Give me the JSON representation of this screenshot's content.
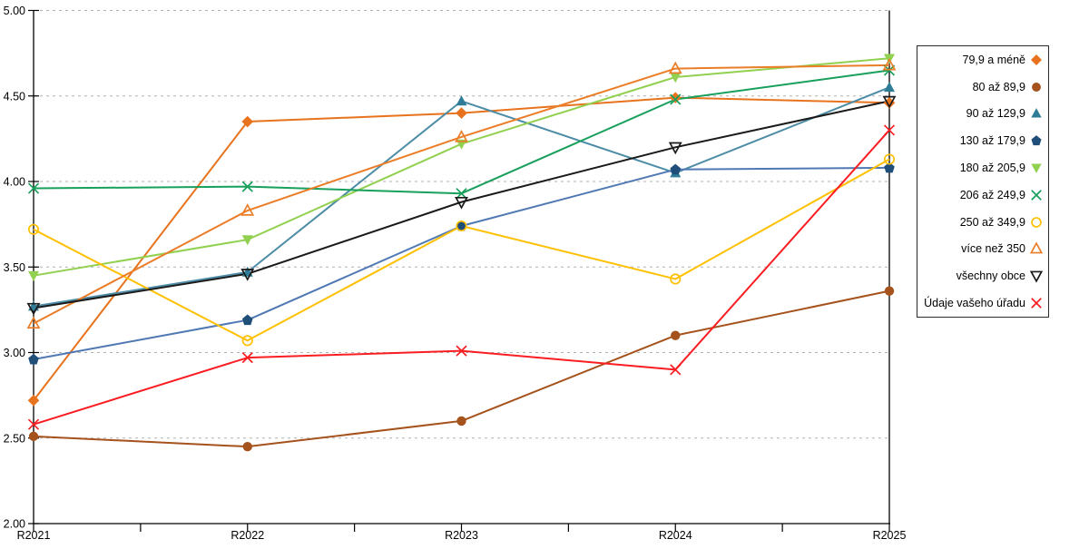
{
  "chart_data": {
    "type": "line",
    "title": "",
    "categories": [
      "R2021",
      "R2022",
      "R2023",
      "R2024",
      "R2025"
    ],
    "xlabel": "",
    "ylabel": "",
    "ylim": [
      2.0,
      5.0
    ],
    "ytick_interval": 0.5,
    "ytick_labels": [
      "5.00",
      "4.50",
      "4.00",
      "3.50",
      "3.00",
      "2.50",
      "2.00"
    ],
    "grid": {
      "horizontal": true,
      "style": "dashed",
      "color": "#B0B0B0"
    },
    "legend_position": "right-box",
    "series": [
      {
        "name": "79,9 a méně",
        "marker": "diamond",
        "fill": "filled",
        "color": "#E8731E",
        "marker_color": "#E8731E",
        "values": [
          2.72,
          4.35,
          4.4,
          4.49,
          4.46
        ]
      },
      {
        "name": "80 až 89,9",
        "marker": "circle",
        "fill": "filled",
        "color": "#A5521C",
        "marker_color": "#A5521C",
        "values": [
          2.51,
          2.45,
          2.6,
          3.1,
          3.36
        ]
      },
      {
        "name": "90 až 129,9",
        "marker": "triangle-up",
        "fill": "filled",
        "color": "#4C8CA6",
        "marker_color": "#2E7C95",
        "values": [
          3.27,
          3.47,
          4.47,
          4.05,
          4.55
        ]
      },
      {
        "name": "130 až 179,9",
        "marker": "pentagon",
        "fill": "filled",
        "color": "#5079B4",
        "marker_color": "#1F4E79",
        "values": [
          2.96,
          3.19,
          3.74,
          4.07,
          4.08
        ]
      },
      {
        "name": "180 až 205,9",
        "marker": "triangle-down",
        "fill": "filled",
        "color": "#92D050",
        "marker_color": "#92D050",
        "values": [
          3.45,
          3.66,
          4.22,
          4.61,
          4.72
        ]
      },
      {
        "name": "206 až 249,9",
        "marker": "square",
        "fill": "hollow",
        "color": "#18A05C",
        "marker_color": "#18A05C",
        "values": [
          3.96,
          3.97,
          3.93,
          4.48,
          4.65
        ]
      },
      {
        "name": "250 až 349,9",
        "marker": "circle",
        "fill": "hollow",
        "color": "#FFC000",
        "marker_color": "#FFC000",
        "values": [
          3.72,
          3.07,
          3.74,
          3.43,
          4.13
        ]
      },
      {
        "name": "více než 350",
        "marker": "triangle-up",
        "fill": "hollow",
        "color": "#EB7D28",
        "marker_color": "#EB7D28",
        "values": [
          3.17,
          3.83,
          4.26,
          4.66,
          4.68
        ]
      },
      {
        "name": "všechny obce",
        "marker": "triangle-down",
        "fill": "hollow",
        "color": "#1A1A1A",
        "marker_color": "#1A1A1A",
        "values": [
          3.26,
          3.46,
          3.88,
          4.2,
          4.47
        ]
      },
      {
        "name": "Údaje vašeho úřadu",
        "marker": "x",
        "fill": "hollow",
        "color": "#FA1E23",
        "marker_color": "#FA1E23",
        "values": [
          2.58,
          2.97,
          3.01,
          2.9,
          4.3
        ]
      }
    ]
  }
}
